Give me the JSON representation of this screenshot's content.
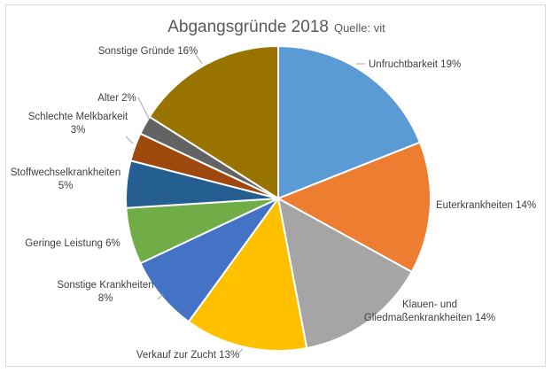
{
  "chart_data": {
    "type": "pie",
    "title": "Abgangsgründe 2018",
    "subtitle": "Quelle: vit",
    "slices": [
      {
        "label": "Unfruchtbarkeit",
        "value": 19,
        "value_label": "19%",
        "color": "#5b9bd5"
      },
      {
        "label": "Euterkrankheiten",
        "value": 14,
        "value_label": "14%",
        "color": "#ed7d31"
      },
      {
        "label": "Klauen- und Gliedmaßenkrankheiten",
        "value": 14,
        "value_label": "14%",
        "color": "#a5a5a5"
      },
      {
        "label": "Verkauf zur Zucht",
        "value": 13,
        "value_label": "13%",
        "color": "#ffc000"
      },
      {
        "label": "Sonstige Krankheiten",
        "value": 8,
        "value_label": "8%",
        "color": "#4472c4"
      },
      {
        "label": "Geringe Leistung",
        "value": 6,
        "value_label": "6%",
        "color": "#70ad47"
      },
      {
        "label": "Stoffwechselkrankheiten",
        "value": 5,
        "value_label": "5%",
        "color": "#255e91"
      },
      {
        "label": "Schlechte Melkbarkeit",
        "value": 3,
        "value_label": "3%",
        "color": "#9e480e"
      },
      {
        "label": "Alter",
        "value": 2,
        "value_label": "2%",
        "color": "#636363"
      },
      {
        "label": "Sonstige Gründe",
        "value": 16,
        "value_label": "16%",
        "color": "#997300"
      }
    ],
    "legend": "none"
  }
}
